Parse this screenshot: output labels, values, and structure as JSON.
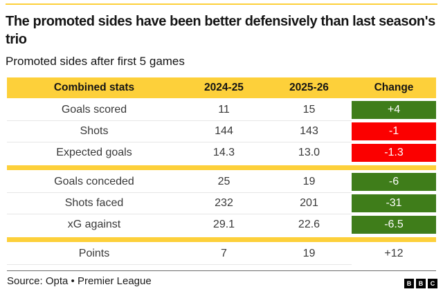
{
  "header": {
    "title": "The promoted sides have been better defensively than last season's trio",
    "subtitle": "Promoted sides after first 5 games"
  },
  "table": {
    "columns": [
      "Combined stats",
      "2024-25",
      "2025-26",
      "Change"
    ],
    "rows": [
      {
        "label": "Goals scored",
        "s2024": "11",
        "s2025": "15",
        "change": "+4",
        "change_type": "positive"
      },
      {
        "label": "Shots",
        "s2024": "144",
        "s2025": "143",
        "change": "-1",
        "change_type": "negative"
      },
      {
        "label": "Expected goals",
        "s2024": "14.3",
        "s2025": "13.0",
        "change": "-1.3",
        "change_type": "negative"
      },
      {
        "label": "Goals conceded",
        "s2024": "25",
        "s2025": "19",
        "change": "-6",
        "change_type": "positive"
      },
      {
        "label": "Shots faced",
        "s2024": "232",
        "s2025": "201",
        "change": "-31",
        "change_type": "positive"
      },
      {
        "label": "xG against",
        "s2024": "29.1",
        "s2025": "22.6",
        "change": "-6.5",
        "change_type": "positive"
      },
      {
        "label": "Points",
        "s2024": "7",
        "s2025": "19",
        "change": "+12",
        "change_type": "neutral"
      }
    ]
  },
  "footer": {
    "source": "Source: Opta • Premier League",
    "logo_letters": {
      "b1": "B",
      "b2": "B",
      "b3": "C"
    }
  },
  "colors": {
    "accent": "#FDD03A",
    "positive": "#3F7D1A",
    "negative": "#FB0000",
    "neutral": "#3A3A3A"
  },
  "chart_data": {
    "type": "table",
    "title": "The promoted sides have been better defensively than last season's trio",
    "subtitle": "Promoted sides after first 5 games",
    "columns": [
      "Combined stats",
      "2024-25",
      "2025-26",
      "Change"
    ],
    "rows": [
      [
        "Goals scored",
        11,
        15,
        "+4"
      ],
      [
        "Shots",
        144,
        143,
        "-1"
      ],
      [
        "Expected goals",
        14.3,
        13.0,
        "-1.3"
      ],
      [
        "Goals conceded",
        25,
        19,
        "-6"
      ],
      [
        "Shots faced",
        232,
        201,
        "-31"
      ],
      [
        "xG against",
        29.1,
        22.6,
        "-6.5"
      ],
      [
        "Points",
        7,
        19,
        "+12"
      ]
    ],
    "groups": [
      [
        "Goals scored",
        "Shots",
        "Expected goals"
      ],
      [
        "Goals conceded",
        "Shots faced",
        "xG against"
      ],
      [
        "Points"
      ]
    ],
    "change_color_coding": {
      "+4": "green",
      "-1": "red",
      "-1.3": "red",
      "-6": "green",
      "-31": "green",
      "-6.5": "green",
      "+12": "none"
    },
    "source": "Source: Opta • Premier League"
  }
}
